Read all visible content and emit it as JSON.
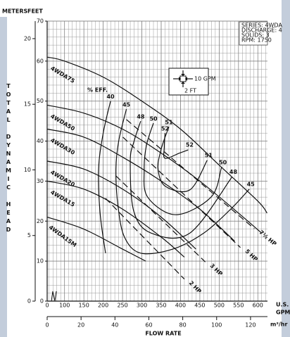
{
  "chart_data": {
    "type": "line",
    "yunits": [
      "METERS",
      "FEET"
    ],
    "ylabel": "TOTAL DYNAMIC HEAD",
    "xlabel": "FLOW RATE",
    "xunit": [
      "U.S.",
      "GPM"
    ],
    "x2label": "m³/hr",
    "eff_label": "% EFF.",
    "info": [
      "SERIES: 4WDA",
      "DISCHARGE: 4",
      "SOLIDS: 3",
      "RPM: 1750"
    ],
    "scale_key": {
      "flow": "10 GPM",
      "head": "2 FT"
    },
    "xlim": [
      55,
      625
    ],
    "xticks": [
      100,
      150,
      200,
      250,
      300,
      350,
      400,
      450,
      500,
      550,
      600
    ],
    "x_origin_label": 0,
    "x2lim": [
      0,
      130
    ],
    "x2ticks": [
      0,
      20,
      40,
      60,
      80,
      100,
      120
    ],
    "ylim": [
      0,
      70
    ],
    "yticks": [
      0,
      10,
      20,
      30,
      40,
      50,
      60,
      70
    ],
    "y2lim": [
      0,
      21.336
    ],
    "y2ticks": [
      0,
      5,
      10,
      15,
      20
    ],
    "grid": true,
    "color": "#111111",
    "series": [
      {
        "name": "4WDA75",
        "x": [
          55,
          100,
          200,
          300,
          400,
          500,
          600,
          624
        ],
        "values": [
          61,
          60,
          56,
          50,
          43,
          34,
          25,
          22
        ]
      },
      {
        "name": "4WDA50",
        "x": [
          55,
          150,
          250,
          350,
          450,
          550,
          610
        ],
        "values": [
          49,
          47,
          43,
          37,
          30,
          22,
          17
        ]
      },
      {
        "name": "4WDA30",
        "x": [
          55,
          150,
          250,
          350,
          450,
          540
        ],
        "values": [
          43,
          41,
          36,
          30,
          23,
          15
        ]
      },
      {
        "name": "4WDA20",
        "x": [
          55,
          150,
          250,
          350,
          440
        ],
        "values": [
          35,
          33,
          28,
          21,
          13
        ]
      },
      {
        "name": "4WDA15",
        "x": [
          55,
          150,
          250,
          350,
          410
        ],
        "values": [
          30,
          28,
          23,
          16,
          11
        ]
      },
      {
        "name": "4WDA15M",
        "x": [
          55,
          150,
          250,
          310
        ],
        "values": [
          21,
          18,
          13,
          10
        ]
      }
    ],
    "efficiency_curves": [
      {
        "name": "40",
        "x": [
          219,
          200,
          188,
          192,
          206
        ],
        "values": [
          50,
          42,
          33,
          22,
          12
        ]
      },
      {
        "name": "45",
        "x": [
          260,
          240,
          233,
          238,
          255,
          297,
          380,
          460,
          530,
          578
        ],
        "values": [
          48,
          40,
          33,
          24,
          16,
          12,
          13,
          17,
          23,
          28
        ]
      },
      {
        "name": "48",
        "x": [
          297,
          280,
          270,
          279,
          324,
          424,
          533
        ],
        "values": [
          45,
          40,
          35,
          22.5,
          17,
          17,
          31
        ]
      },
      {
        "name": "50",
        "x": [
          330,
          312,
          306,
          315,
          388,
          479,
          506
        ],
        "values": [
          44.5,
          39,
          33,
          26,
          21.6,
          26,
          33.4
        ]
      },
      {
        "name": "51",
        "x": [
          370,
          350,
          342,
          361,
          424,
          469
        ],
        "values": [
          43.6,
          38,
          33,
          28.7,
          27.8,
          35.2
        ]
      },
      {
        "name": "52",
        "x": [
          360,
          358,
          360,
          397,
          420
        ],
        "values": [
          42,
          38.5,
          35.7,
          37,
          37.8
        ]
      }
    ],
    "power_lines": [
      {
        "name": "2 HP",
        "x": [
          206,
          410
        ],
        "values": [
          25.7,
          5.5
        ]
      },
      {
        "name": "3 HP",
        "x": [
          233,
          464
        ],
        "values": [
          31.3,
          9.8
        ]
      },
      {
        "name": "5 HP",
        "x": [
          251,
          555
        ],
        "values": [
          41,
          13.4
        ]
      },
      {
        "name": "7½ HP",
        "x": [
          260,
          591
        ],
        "values": [
          45.4,
          18.1
        ]
      }
    ]
  }
}
